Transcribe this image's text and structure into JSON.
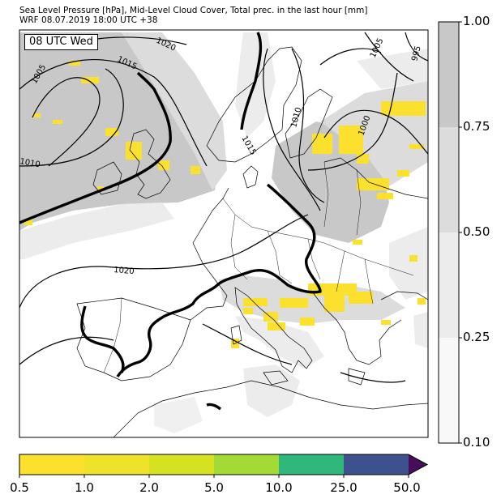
{
  "header": {
    "title_line1": "Sea Level Pressure [hPa], Mid-Level Cloud Cover, Total prec. in the last hour [mm]",
    "title_line2": "WRF 08.07.2019 18:00 UTC +38"
  },
  "map": {
    "time_label": "08 UTC Wed",
    "isobar_labels": [
      "1020",
      "1015",
      "1005",
      "1010",
      "1015",
      "1010",
      "1000",
      "1005",
      "995",
      "1020"
    ]
  },
  "cloud_colorbar": {
    "ticks": [
      "1.00",
      "0.75",
      "0.50",
      "0.25",
      "0.10"
    ],
    "colors": [
      "#c8c8c8",
      "#dcdcdc",
      "#ececec",
      "#f8f8f8"
    ]
  },
  "precip_colorbar": {
    "ticks": [
      "0.5",
      "1.0",
      "2.0",
      "5.0",
      "10.0",
      "25.0",
      "50.0"
    ],
    "colors": [
      "#fbe12d",
      "#eee32a",
      "#d6e221",
      "#a3da36",
      "#2fb87a",
      "#3d528c",
      "#470d58"
    ]
  }
}
